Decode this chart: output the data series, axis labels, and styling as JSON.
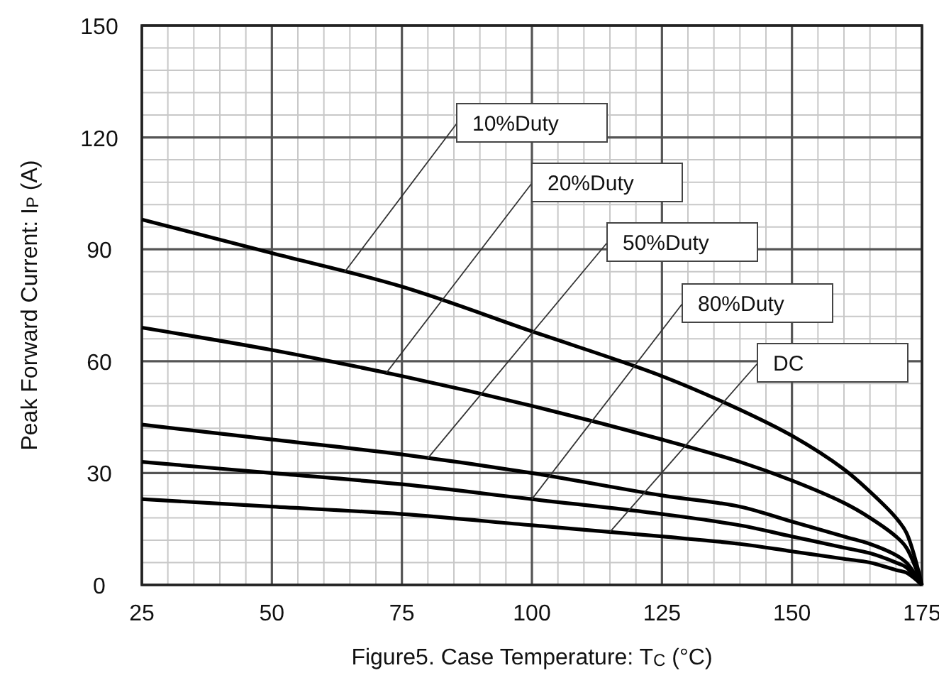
{
  "chart_data": {
    "type": "line",
    "xlabel": "Figure5. Case Temperature: T$_{C}$ (°C)",
    "ylabel": "Peak Forward Current: I$_{P}$ (A)",
    "x": [
      25,
      50,
      75,
      100,
      125,
      140,
      150,
      160,
      165,
      170,
      172,
      175
    ],
    "series": [
      {
        "name": "10%Duty",
        "color": "#000000",
        "values": [
          98,
          89,
          80,
          68,
          56,
          47,
          40,
          31,
          25,
          18,
          14,
          0
        ]
      },
      {
        "name": "20%Duty",
        "color": "#000000",
        "values": [
          69,
          63,
          56,
          48,
          39,
          33,
          28,
          22,
          18,
          13,
          10,
          0
        ]
      },
      {
        "name": "50%Duty",
        "color": "#000000",
        "values": [
          43,
          39,
          35,
          30,
          24,
          21,
          17,
          13,
          11,
          8,
          6,
          0
        ]
      },
      {
        "name": "80%Duty",
        "color": "#000000",
        "values": [
          33,
          30,
          27,
          23,
          19,
          16,
          13,
          10,
          8.5,
          6,
          4.7,
          0
        ]
      },
      {
        "name": "DC",
        "color": "#000000",
        "values": [
          23,
          21,
          19,
          16,
          13,
          11,
          9,
          7,
          6,
          4,
          3.3,
          0
        ]
      }
    ],
    "xlim": [
      25,
      175
    ],
    "xticks": [
      25,
      50,
      75,
      100,
      125,
      150,
      175
    ],
    "ylim": [
      0,
      150
    ],
    "yticks": [
      0,
      30,
      60,
      90,
      120,
      150
    ],
    "grid": true,
    "marker": "none",
    "line_style": "solid"
  }
}
